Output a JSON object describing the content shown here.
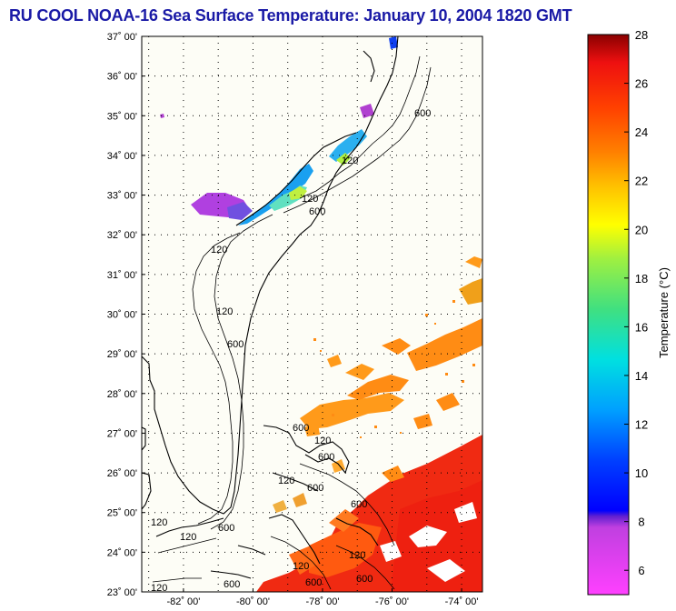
{
  "title": "RU COOL  NOAA-16  Sea Surface Temperature:  January 10, 2004 1820 GMT",
  "map": {
    "lat_ticks": [
      "23˚ 00'",
      "24˚ 00'",
      "25˚ 00'",
      "26˚ 00'",
      "27˚ 00'",
      "28˚ 00'",
      "29˚ 00'",
      "30˚ 00'",
      "31˚ 00'",
      "32˚ 00'",
      "33˚ 00'",
      "34˚ 00'",
      "35˚ 00'",
      "36˚ 00'",
      "37˚ 00'"
    ],
    "lon_ticks": [
      "-82˚ 00'",
      "-80˚ 00'",
      "-78˚ 00'",
      "-76˚ 00'",
      "-74˚ 00'"
    ],
    "lat_range": [
      23,
      37
    ],
    "lon_range": [
      -83.2,
      -73.4
    ],
    "contour_labels": [
      "600",
      "120",
      "120",
      "600",
      "120",
      "120",
      "600",
      "600",
      "120",
      "600",
      "120",
      "600",
      "120",
      "600",
      "120",
      "600",
      "120",
      "600",
      "120",
      "600",
      "120",
      "600"
    ]
  },
  "colorbar": {
    "label": "Temperature (°C)",
    "ticks": [
      "6",
      "8",
      "10",
      "12",
      "14",
      "16",
      "18",
      "20",
      "22",
      "24",
      "26",
      "28"
    ],
    "range": [
      5,
      28
    ]
  }
}
